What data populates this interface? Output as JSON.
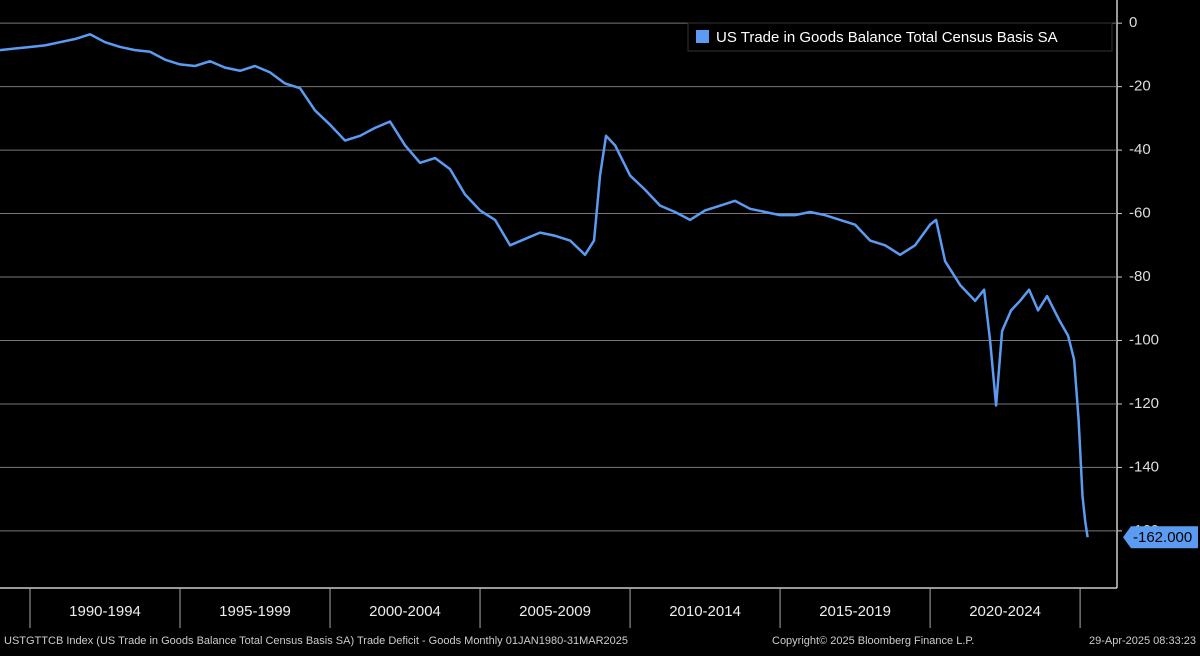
{
  "chart_data": {
    "type": "line",
    "x": [
      1989,
      1989.5,
      1990,
      1990.5,
      1991,
      1991.5,
      1992,
      1992.5,
      1993,
      1993.5,
      1994,
      1994.5,
      1995,
      1995.5,
      1996,
      1996.5,
      1997,
      1997.5,
      1998,
      1998.5,
      1999,
      1999.5,
      2000,
      2000.5,
      2001,
      2001.5,
      2002,
      2002.5,
      2003,
      2003.5,
      2004,
      2004.5,
      2005,
      2005.5,
      2006,
      2006.5,
      2007,
      2007.5,
      2008,
      2008.5,
      2008.8,
      2009,
      2009.2,
      2009.5,
      2010,
      2010.5,
      2011,
      2011.5,
      2012,
      2012.5,
      2013,
      2013.5,
      2014,
      2014.5,
      2015,
      2015.5,
      2016,
      2016.5,
      2017,
      2017.5,
      2018,
      2018.5,
      2019,
      2019.5,
      2020,
      2020.2,
      2020.5,
      2021,
      2021.5,
      2021.8,
      2022,
      2022.2,
      2022.4,
      2022.7,
      2023,
      2023.3,
      2023.6,
      2023.9,
      2024.3,
      2024.6,
      2024.8,
      2024.95,
      2025.08,
      2025.17,
      2025.25
    ],
    "series": [
      {
        "name": "US Trade in Goods Balance Total Census Basis SA",
        "color": "#5b9cf2",
        "values": [
          -8.5,
          -8,
          -7.5,
          -7,
          -6,
          -5,
          -3.5,
          -6,
          -7.5,
          -8.5,
          -9,
          -11.5,
          -13,
          -13.5,
          -12,
          -14,
          -15,
          -13.5,
          -15.5,
          -19,
          -20.5,
          -27.5,
          -32,
          -37,
          -35.5,
          -33,
          -31,
          -38.5,
          -44,
          -42.5,
          -46,
          -54,
          -59,
          -62,
          -70,
          -68,
          -66,
          -67,
          -68.5,
          -73,
          -68.5,
          -48,
          -35.5,
          -38.5,
          -48,
          -52.5,
          -57.5,
          -59.5,
          -62,
          -59,
          -57.5,
          -56,
          -58.5,
          -59.5,
          -60.5,
          -60.5,
          -59.5,
          -60.5,
          -62,
          -63.5,
          -68.5,
          -70,
          -73,
          -70,
          -63.5,
          -62,
          -75,
          -82.5,
          -87.5,
          -84,
          -100,
          -120.5,
          -97,
          -90.5,
          -87.5,
          -84,
          -90.5,
          -86,
          -93.5,
          -98.5,
          -106,
          -125,
          -149,
          -157,
          -162
        ],
        "value_labels": [
          null,
          null,
          null,
          null,
          null,
          null,
          null,
          null,
          null,
          null,
          null,
          null,
          null,
          null,
          null,
          null,
          null,
          null,
          null,
          null,
          null,
          null,
          null,
          null,
          null,
          null,
          null,
          null,
          null,
          null,
          null,
          null,
          null,
          null,
          null,
          null,
          null,
          null,
          null,
          null,
          null,
          null,
          null,
          null,
          null,
          null,
          null,
          null,
          null,
          null,
          null,
          null,
          null,
          null,
          null,
          null,
          null,
          null,
          null,
          null,
          null,
          null,
          null,
          null,
          null,
          null,
          null,
          null,
          null,
          null,
          null,
          null,
          null,
          null,
          null,
          null,
          null,
          null,
          null,
          null,
          null,
          null,
          null,
          null,
          "-162.000"
        ]
      }
    ],
    "xlim": [
      1989,
      2026.23
    ],
    "xticks": [
      {
        "value": 1992.5,
        "label": "1990-1994"
      },
      {
        "value": 1997.5,
        "label": "1995-1999"
      },
      {
        "value": 2002.5,
        "label": "2000-2004"
      },
      {
        "value": 2007.5,
        "label": "2005-2009"
      },
      {
        "value": 2012.5,
        "label": "2010-2014"
      },
      {
        "value": 2017.5,
        "label": "2015-2019"
      },
      {
        "value": 2022.5,
        "label": "2020-2024"
      }
    ],
    "xseparators": [
      1990,
      1995,
      2000,
      2005,
      2010,
      2015,
      2020,
      2025
    ],
    "ylim": [
      -178,
      7.3
    ],
    "yticks": [
      0,
      -20,
      -40,
      -60,
      -80,
      -100,
      -120,
      -140,
      -160
    ],
    "grid": true,
    "legend": "upper right"
  },
  "footer": {
    "left": "USTGTTCB Index (US Trade in Goods Balance Total Census Basis SA) Trade Deficit - Goods  Monthly 01JAN1980-31MAR2025",
    "center": "Copyright© 2025 Bloomberg Finance L.P.",
    "right": "29-Apr-2025 08:33:23"
  }
}
